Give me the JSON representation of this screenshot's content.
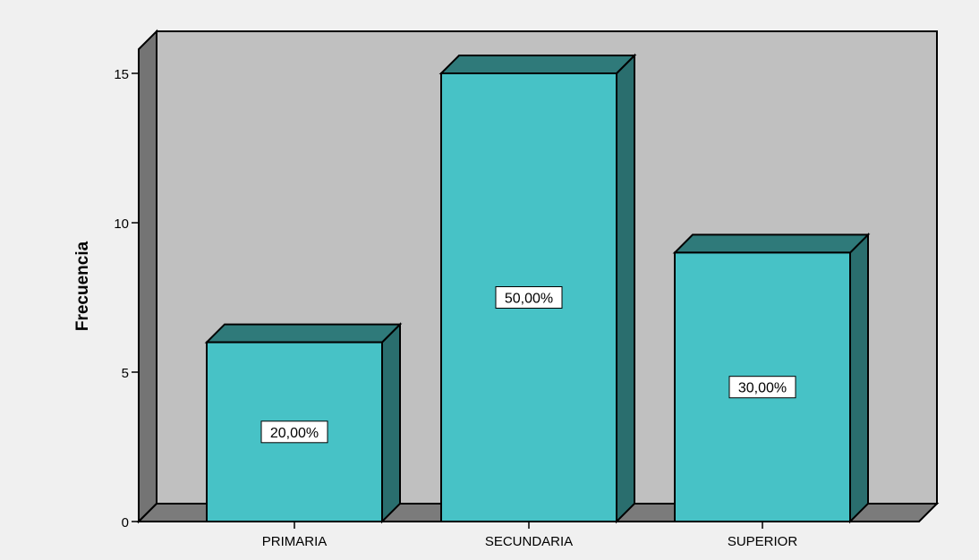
{
  "chart_data": {
    "type": "bar",
    "title": "",
    "xlabel": "",
    "ylabel": "Frecuencia",
    "categories": [
      "PRIMARIA",
      "SECUNDARIA",
      "SUPERIOR"
    ],
    "values": [
      6,
      15,
      9
    ],
    "data_labels": [
      "20,00%",
      "50,00%",
      "30,00%"
    ],
    "ylim": [
      0,
      15
    ],
    "yticks": [
      0,
      5,
      10,
      15
    ],
    "ytick_labels": [
      "0",
      "5",
      "10",
      "15"
    ],
    "style": "3d",
    "grid": false,
    "legend": "none"
  },
  "colors": {
    "background": "#f0f0f0",
    "plot_wall": "#c0c0c0",
    "side_wall": "#747474",
    "floor": "#7b7b7b",
    "bar_front": "#47c2c6",
    "bar_top": "#2f7a7a",
    "bar_side": "#2a6e6e",
    "outline": "#000000"
  }
}
